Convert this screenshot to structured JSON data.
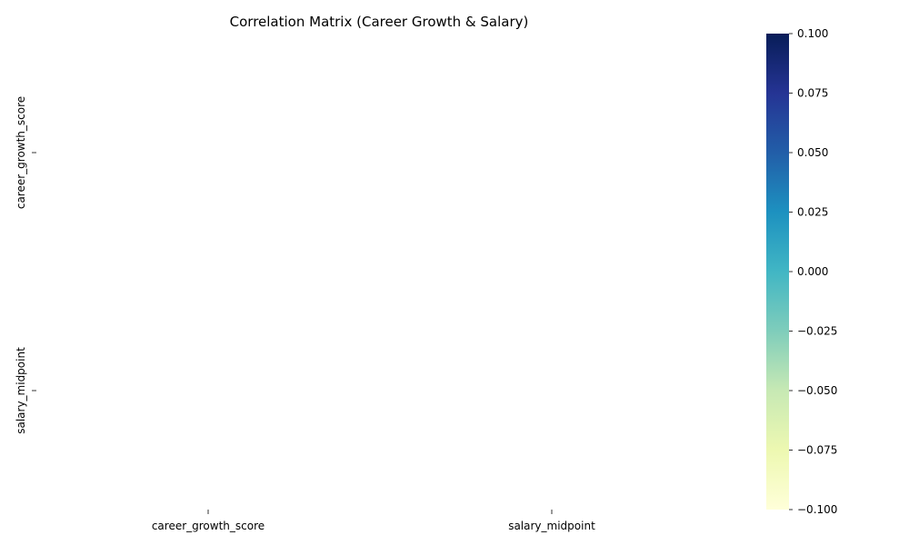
{
  "chart_data": {
    "type": "heatmap",
    "title": "Correlation Matrix (Career Growth & Salary)",
    "xlabel": "",
    "ylabel": "",
    "x_categories": [
      "career_growth_score",
      "salary_midpoint"
    ],
    "y_categories": [
      "career_growth_score",
      "salary_midpoint"
    ],
    "values": [
      [
        null,
        null
      ],
      [
        null,
        null
      ]
    ],
    "colormap": "YlGnBu",
    "colorbar": {
      "range": [
        -0.1,
        0.1
      ],
      "ticks": [
        0.1,
        0.075,
        0.05,
        0.025,
        0.0,
        -0.025,
        -0.05,
        -0.075,
        -0.1
      ],
      "tick_labels": [
        "0.100",
        "0.075",
        "0.050",
        "0.025",
        "0.000",
        "−0.025",
        "−0.050",
        "−0.075",
        "−0.100"
      ],
      "colors": [
        "#ffffd9",
        "#edf8b1",
        "#c7e9b4",
        "#7fcdbb",
        "#41b6c4",
        "#1d91c0",
        "#225ea8",
        "#253494",
        "#081d58"
      ]
    },
    "grid": false,
    "legend": "right"
  }
}
